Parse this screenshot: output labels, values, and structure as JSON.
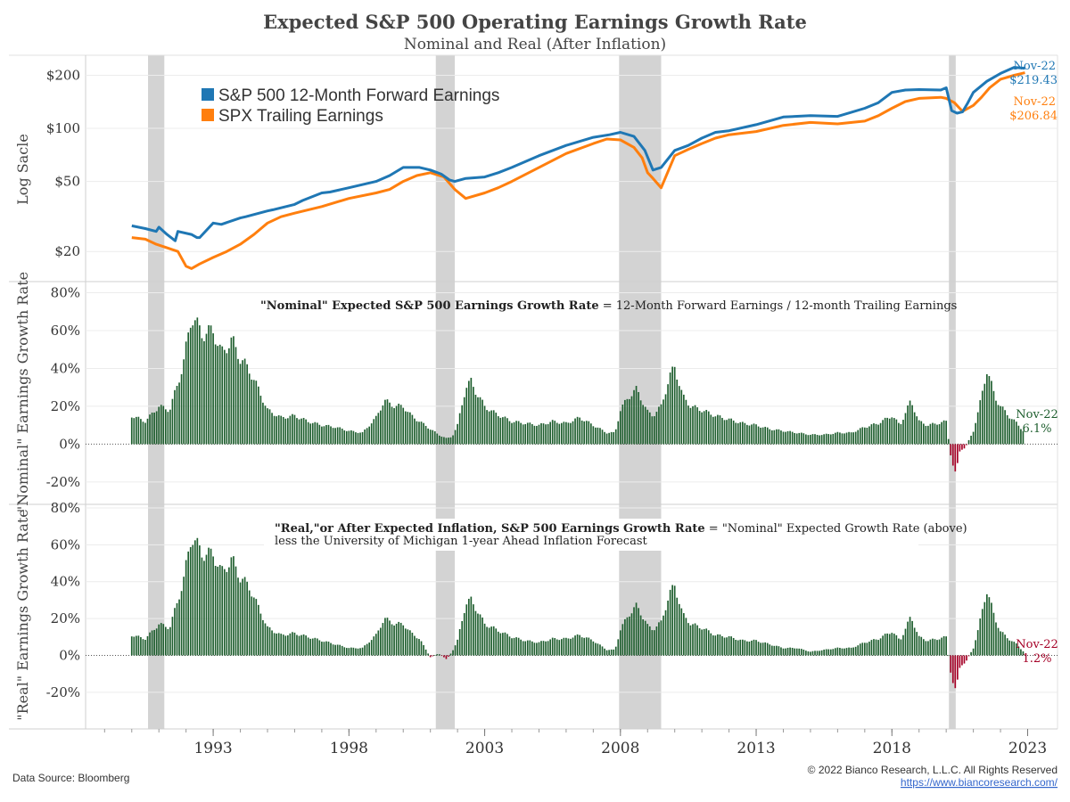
{
  "header": {
    "title": "Expected S&P 500 Operating Earnings Growth Rate",
    "subtitle": "Nominal and Real (After Inflation)"
  },
  "footer": {
    "source": "Data Source: Bloomberg",
    "copyright": "© 2022 Bianco Research, L.L.C. All Rights Reserved",
    "url": "https://www.biancoresearch.com/"
  },
  "colors": {
    "forward": "#1f77b4",
    "trailing": "#ff7f0e",
    "positive_bar": "#1e5e2e",
    "negative_bar": "#a50026",
    "recession": "#d3d3d3"
  },
  "chart_data": [
    {
      "type": "line",
      "panel": "earnings",
      "ylabel": "Log Sacle",
      "yscale": "log",
      "ylim": [
        13.5,
        260
      ],
      "yticks": [
        20,
        50,
        100,
        200
      ],
      "ytick_labels": [
        "$20",
        "$50",
        "$100",
        "$200"
      ],
      "xlim": [
        1988.3,
        2024.1
      ],
      "xticks": [
        1993,
        1998,
        2003,
        2008,
        2013,
        2018,
        2023
      ],
      "xtick_labels": [
        "1993",
        "1998",
        "2003",
        "2008",
        "2013",
        "2018",
        "2023"
      ],
      "legend": "top-left",
      "recessions": [
        [
          1990.6,
          1991.2
        ],
        [
          2001.2,
          2001.9
        ],
        [
          2007.95,
          2009.5
        ],
        [
          2020.1,
          2020.35
        ]
      ],
      "series": [
        {
          "name": "S&P 500 12-Month Forward Earnings",
          "x": [
            1990.0,
            1990.5,
            1990.9,
            1991.0,
            1991.3,
            1991.6,
            1991.7,
            1992.2,
            1992.4,
            1992.5,
            1993.0,
            1993.3,
            1994.0,
            1994.2,
            1995.0,
            1995.2,
            1996.0,
            1996.3,
            1997.0,
            1997.3,
            1998.0,
            1999.0,
            1999.5,
            2000.0,
            2000.6,
            2001.0,
            2001.4,
            2001.7,
            2001.9,
            2002.3,
            2003.0,
            2003.5,
            2004.0,
            2005.0,
            2006.0,
            2007.0,
            2007.6,
            2008.0,
            2008.5,
            2008.9,
            2009.2,
            2009.5,
            2010.0,
            2010.5,
            2011.0,
            2011.5,
            2012.0,
            2013.0,
            2014.0,
            2015.0,
            2016.0,
            2017.0,
            2017.5,
            2018.0,
            2018.5,
            2019.0,
            2019.8,
            2020.0,
            2020.2,
            2020.4,
            2020.6,
            2020.8,
            2021.0,
            2021.5,
            2022.0,
            2022.5,
            2022.9
          ],
          "values": [
            28,
            27,
            26,
            27.5,
            25,
            23,
            26,
            25,
            24,
            24,
            29,
            28.5,
            31,
            31.5,
            34,
            34.5,
            37,
            39,
            43,
            43.5,
            46,
            50,
            54,
            60,
            60,
            58,
            55,
            51,
            50,
            52,
            53,
            56,
            60,
            70,
            80,
            89,
            92,
            95,
            90,
            75,
            58,
            60,
            75,
            80,
            88,
            95,
            97,
            105,
            116,
            118,
            117,
            130,
            140,
            160,
            165,
            166,
            165,
            170,
            126,
            122,
            124,
            140,
            160,
            185,
            205,
            222,
            219.43
          ]
        },
        {
          "name": "SPX Trailing Earnings",
          "x": [
            1990.0,
            1990.5,
            1990.9,
            1991.3,
            1991.7,
            1992.0,
            1992.2,
            1992.5,
            1993.0,
            1993.5,
            1994.0,
            1994.5,
            1995.0,
            1995.5,
            1996.0,
            1997.0,
            1998.0,
            1999.0,
            1999.5,
            2000.0,
            2000.5,
            2001.0,
            2001.5,
            2001.9,
            2002.3,
            2003.0,
            2003.5,
            2004.0,
            2005.0,
            2006.0,
            2007.0,
            2007.5,
            2008.0,
            2008.5,
            2008.8,
            2009.0,
            2009.2,
            2009.5,
            2010.0,
            2010.5,
            2011.0,
            2011.5,
            2012.0,
            2013.0,
            2014.0,
            2015.0,
            2016.0,
            2017.0,
            2017.5,
            2018.0,
            2018.5,
            2019.0,
            2019.8,
            2020.0,
            2020.3,
            2020.6,
            2021.0,
            2021.3,
            2021.6,
            2022.0,
            2022.5,
            2022.9
          ],
          "values": [
            24,
            23.5,
            22,
            21,
            20,
            16.5,
            16,
            17,
            18.5,
            20,
            22,
            25,
            29,
            31.5,
            33,
            36,
            40,
            43,
            45,
            50,
            54,
            56,
            53,
            45,
            40,
            43,
            46,
            50,
            60,
            72,
            82,
            87,
            86,
            78,
            68,
            56,
            52,
            46,
            70,
            76,
            82,
            88,
            92,
            96,
            104,
            108,
            106,
            110,
            118,
            130,
            142,
            148,
            150,
            148,
            140,
            125,
            135,
            150,
            170,
            190,
            200,
            206.84
          ]
        }
      ],
      "end_labels": [
        {
          "date": "Nov-22",
          "value": "$219.43",
          "series": "S&P 500 12-Month Forward Earnings"
        },
        {
          "date": "Nov-22",
          "value": "$206.84",
          "series": "SPX Trailing Earnings"
        }
      ]
    },
    {
      "type": "bar",
      "panel": "nominal",
      "ylabel": "\"Nominal\" Earnings Growth Rate",
      "ylim": [
        -29,
        84
      ],
      "yticks": [
        -20,
        0,
        20,
        40,
        60,
        80
      ],
      "ytick_labels": [
        "-20%",
        "0%",
        "20%",
        "40%",
        "60%",
        "80%"
      ],
      "annotation_bold": "\"Nominal\" Expected S&P 500 Earnings Growth Rate",
      "annotation_rest": " = 12-Month Forward Earnings / 12-month Trailing Earnings",
      "points": [
        [
          1990.0,
          15
        ],
        [
          1990.5,
          12
        ],
        [
          1991.0,
          20
        ],
        [
          1991.4,
          18
        ],
        [
          1991.9,
          42
        ],
        [
          1992.2,
          68
        ],
        [
          1992.6,
          58
        ],
        [
          1993.0,
          60
        ],
        [
          1993.3,
          48
        ],
        [
          1993.7,
          55
        ],
        [
          1994.0,
          45
        ],
        [
          1994.3,
          40
        ],
        [
          1994.7,
          28
        ],
        [
          1995.0,
          18
        ],
        [
          1995.5,
          14
        ],
        [
          1996.0,
          15
        ],
        [
          1996.5,
          12
        ],
        [
          1997.0,
          10
        ],
        [
          1997.5,
          9
        ],
        [
          1998.0,
          7
        ],
        [
          1998.5,
          6
        ],
        [
          1999.0,
          14
        ],
        [
          1999.3,
          23
        ],
        [
          1999.7,
          20
        ],
        [
          2000.0,
          20
        ],
        [
          2000.3,
          15
        ],
        [
          2000.6,
          12
        ],
        [
          2001.0,
          8
        ],
        [
          2001.3,
          5
        ],
        [
          2001.6,
          3
        ],
        [
          2001.8,
          4
        ],
        [
          2002.0,
          10
        ],
        [
          2002.3,
          30
        ],
        [
          2002.5,
          33
        ],
        [
          2002.7,
          27
        ],
        [
          2003.0,
          20
        ],
        [
          2003.3,
          17
        ],
        [
          2003.7,
          14
        ],
        [
          2004.0,
          12
        ],
        [
          2004.5,
          11
        ],
        [
          2005.0,
          10
        ],
        [
          2005.5,
          12
        ],
        [
          2006.0,
          11
        ],
        [
          2006.5,
          14
        ],
        [
          2007.0,
          10
        ],
        [
          2007.5,
          6
        ],
        [
          2007.8,
          6
        ],
        [
          2008.0,
          18
        ],
        [
          2008.3,
          25
        ],
        [
          2008.6,
          29
        ],
        [
          2008.9,
          20
        ],
        [
          2009.0,
          17
        ],
        [
          2009.2,
          15
        ],
        [
          2009.5,
          20
        ],
        [
          2009.8,
          35
        ],
        [
          2010.0,
          41
        ],
        [
          2010.3,
          25
        ],
        [
          2010.6,
          20
        ],
        [
          2011.0,
          18
        ],
        [
          2011.5,
          15
        ],
        [
          2012.0,
          13
        ],
        [
          2012.5,
          11
        ],
        [
          2013.0,
          10
        ],
        [
          2013.5,
          8
        ],
        [
          2014.0,
          7
        ],
        [
          2014.5,
          6
        ],
        [
          2015.0,
          5
        ],
        [
          2015.5,
          5
        ],
        [
          2016.0,
          6
        ],
        [
          2016.5,
          6
        ],
        [
          2017.0,
          9
        ],
        [
          2017.5,
          11
        ],
        [
          2018.0,
          15
        ],
        [
          2018.3,
          10
        ],
        [
          2018.7,
          23
        ],
        [
          2019.0,
          12
        ],
        [
          2019.3,
          10
        ],
        [
          2019.7,
          11
        ],
        [
          2020.0,
          12
        ],
        [
          2020.2,
          -10
        ],
        [
          2020.35,
          -14
        ],
        [
          2020.5,
          -4
        ],
        [
          2020.7,
          -2
        ],
        [
          2021.0,
          7
        ],
        [
          2021.2,
          18
        ],
        [
          2021.4,
          33
        ],
        [
          2021.5,
          39
        ],
        [
          2021.8,
          25
        ],
        [
          2022.0,
          20
        ],
        [
          2022.3,
          15
        ],
        [
          2022.6,
          11
        ],
        [
          2022.9,
          6.1
        ]
      ],
      "end_labels": [
        {
          "date": "Nov-22",
          "value": "6.1%"
        }
      ]
    },
    {
      "type": "bar",
      "panel": "real",
      "ylabel": "\"Real\" Earnings Growth Rate",
      "ylim": [
        -37,
        80
      ],
      "yticks": [
        -20,
        0,
        20,
        40,
        60,
        80
      ],
      "ytick_labels": [
        "-20%",
        "0%",
        "20%",
        "40%",
        "60%",
        "80%"
      ],
      "annotation_bold": "\"Real,\"or After Expected Inflation, S&P 500 Earnings Growth Rate",
      "annotation_rest": " = \"Nominal\" Expected Growth Rate (above)",
      "annotation_line2": "less the University of Michigan 1-year Ahead Inflation Forecast",
      "points": [
        [
          1990.0,
          11
        ],
        [
          1990.5,
          9
        ],
        [
          1991.0,
          17
        ],
        [
          1991.4,
          15
        ],
        [
          1991.9,
          40
        ],
        [
          1992.2,
          65
        ],
        [
          1992.6,
          55
        ],
        [
          1993.0,
          55
        ],
        [
          1993.3,
          45
        ],
        [
          1993.7,
          52
        ],
        [
          1994.0,
          42
        ],
        [
          1994.3,
          38
        ],
        [
          1994.7,
          25
        ],
        [
          1995.0,
          15
        ],
        [
          1995.5,
          11
        ],
        [
          1996.0,
          12
        ],
        [
          1996.5,
          10
        ],
        [
          1997.0,
          8
        ],
        [
          1997.5,
          6
        ],
        [
          1998.0,
          4
        ],
        [
          1998.5,
          4
        ],
        [
          1999.0,
          11
        ],
        [
          1999.3,
          20
        ],
        [
          1999.7,
          17
        ],
        [
          2000.0,
          17
        ],
        [
          2000.3,
          12
        ],
        [
          2000.6,
          9
        ],
        [
          2001.0,
          -1
        ],
        [
          2001.3,
          1
        ],
        [
          2001.6,
          -2
        ],
        [
          2001.8,
          2
        ],
        [
          2002.0,
          8
        ],
        [
          2002.3,
          28
        ],
        [
          2002.5,
          30
        ],
        [
          2002.7,
          25
        ],
        [
          2003.0,
          17
        ],
        [
          2003.3,
          15
        ],
        [
          2003.7,
          12
        ],
        [
          2004.0,
          10
        ],
        [
          2004.5,
          8
        ],
        [
          2005.0,
          7
        ],
        [
          2005.5,
          9
        ],
        [
          2006.0,
          9
        ],
        [
          2006.5,
          11
        ],
        [
          2007.0,
          8
        ],
        [
          2007.5,
          3
        ],
        [
          2007.8,
          3
        ],
        [
          2008.0,
          14
        ],
        [
          2008.3,
          22
        ],
        [
          2008.6,
          27
        ],
        [
          2008.9,
          19
        ],
        [
          2009.0,
          16
        ],
        [
          2009.2,
          14
        ],
        [
          2009.5,
          18
        ],
        [
          2009.8,
          33
        ],
        [
          2010.0,
          38
        ],
        [
          2010.3,
          22
        ],
        [
          2010.6,
          17
        ],
        [
          2011.0,
          15
        ],
        [
          2011.5,
          11
        ],
        [
          2012.0,
          10
        ],
        [
          2012.5,
          8
        ],
        [
          2013.0,
          8
        ],
        [
          2013.5,
          6
        ],
        [
          2014.0,
          4
        ],
        [
          2014.5,
          4
        ],
        [
          2015.0,
          2
        ],
        [
          2015.5,
          3
        ],
        [
          2016.0,
          4
        ],
        [
          2016.5,
          4
        ],
        [
          2017.0,
          7
        ],
        [
          2017.5,
          9
        ],
        [
          2018.0,
          13
        ],
        [
          2018.3,
          8
        ],
        [
          2018.7,
          21
        ],
        [
          2019.0,
          10
        ],
        [
          2019.3,
          8
        ],
        [
          2019.7,
          9
        ],
        [
          2020.0,
          10
        ],
        [
          2020.2,
          -14
        ],
        [
          2020.35,
          -17
        ],
        [
          2020.5,
          -7
        ],
        [
          2020.7,
          -4
        ],
        [
          2021.0,
          4
        ],
        [
          2021.2,
          15
        ],
        [
          2021.4,
          30
        ],
        [
          2021.5,
          35
        ],
        [
          2021.8,
          20
        ],
        [
          2022.0,
          13
        ],
        [
          2022.3,
          9
        ],
        [
          2022.6,
          6
        ],
        [
          2022.9,
          1.2
        ]
      ],
      "end_labels": [
        {
          "date": "Nov-22",
          "value": "1.2%"
        }
      ]
    }
  ]
}
